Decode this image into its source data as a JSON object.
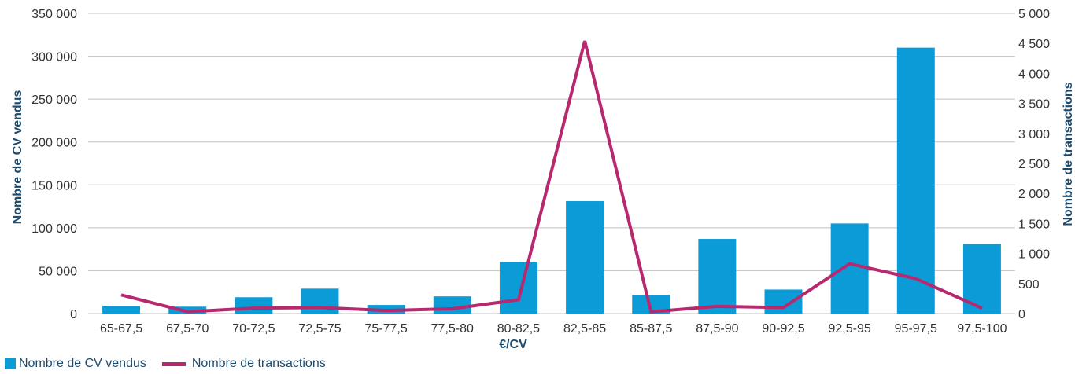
{
  "chart_data": {
    "type": "bar",
    "xlabel": "€/CV",
    "ylabel": "Nombre de CV vendus",
    "y2label": "Nombre de transactions",
    "categories": [
      "65-67,5",
      "67,5-70",
      "70-72,5",
      "72,5-75",
      "75-77,5",
      "77,5-80",
      "80-82,5",
      "82,5-85",
      "85-87,5",
      "87,5-90",
      "90-92,5",
      "92,5-95",
      "95-97,5",
      "97,5-100"
    ],
    "series": [
      {
        "name": "Nombre de CV vendus",
        "type": "bar",
        "axis": "left",
        "color": "#0b9bd7",
        "values": [
          9000,
          8000,
          19000,
          29000,
          10000,
          20000,
          60000,
          131000,
          22000,
          87000,
          28000,
          105000,
          310000,
          81000
        ]
      },
      {
        "name": "Nombre de transactions",
        "type": "line",
        "axis": "right",
        "color": "#b8286f",
        "values": [
          310,
          30,
          90,
          100,
          50,
          80,
          230,
          4540,
          30,
          120,
          100,
          830,
          580,
          90
        ]
      }
    ],
    "ylim": [
      0,
      350000
    ],
    "y2lim": [
      0,
      5000
    ],
    "yticks": [
      0,
      50000,
      100000,
      150000,
      200000,
      250000,
      300000,
      350000
    ],
    "yticklabels": [
      "0",
      "50 000",
      "100 000",
      "150 000",
      "200 000",
      "250 000",
      "300 000",
      "350 000"
    ],
    "y2ticks": [
      0,
      500,
      1000,
      1500,
      2000,
      2500,
      3000,
      3500,
      4000,
      4500,
      5000
    ],
    "y2ticklabels": [
      "0",
      "500",
      "1 000",
      "1 500",
      "2 000",
      "2 500",
      "3 000",
      "3 500",
      "4 000",
      "4 500",
      "5 000"
    ],
    "grid": true,
    "legend_position": "bottom-left"
  }
}
